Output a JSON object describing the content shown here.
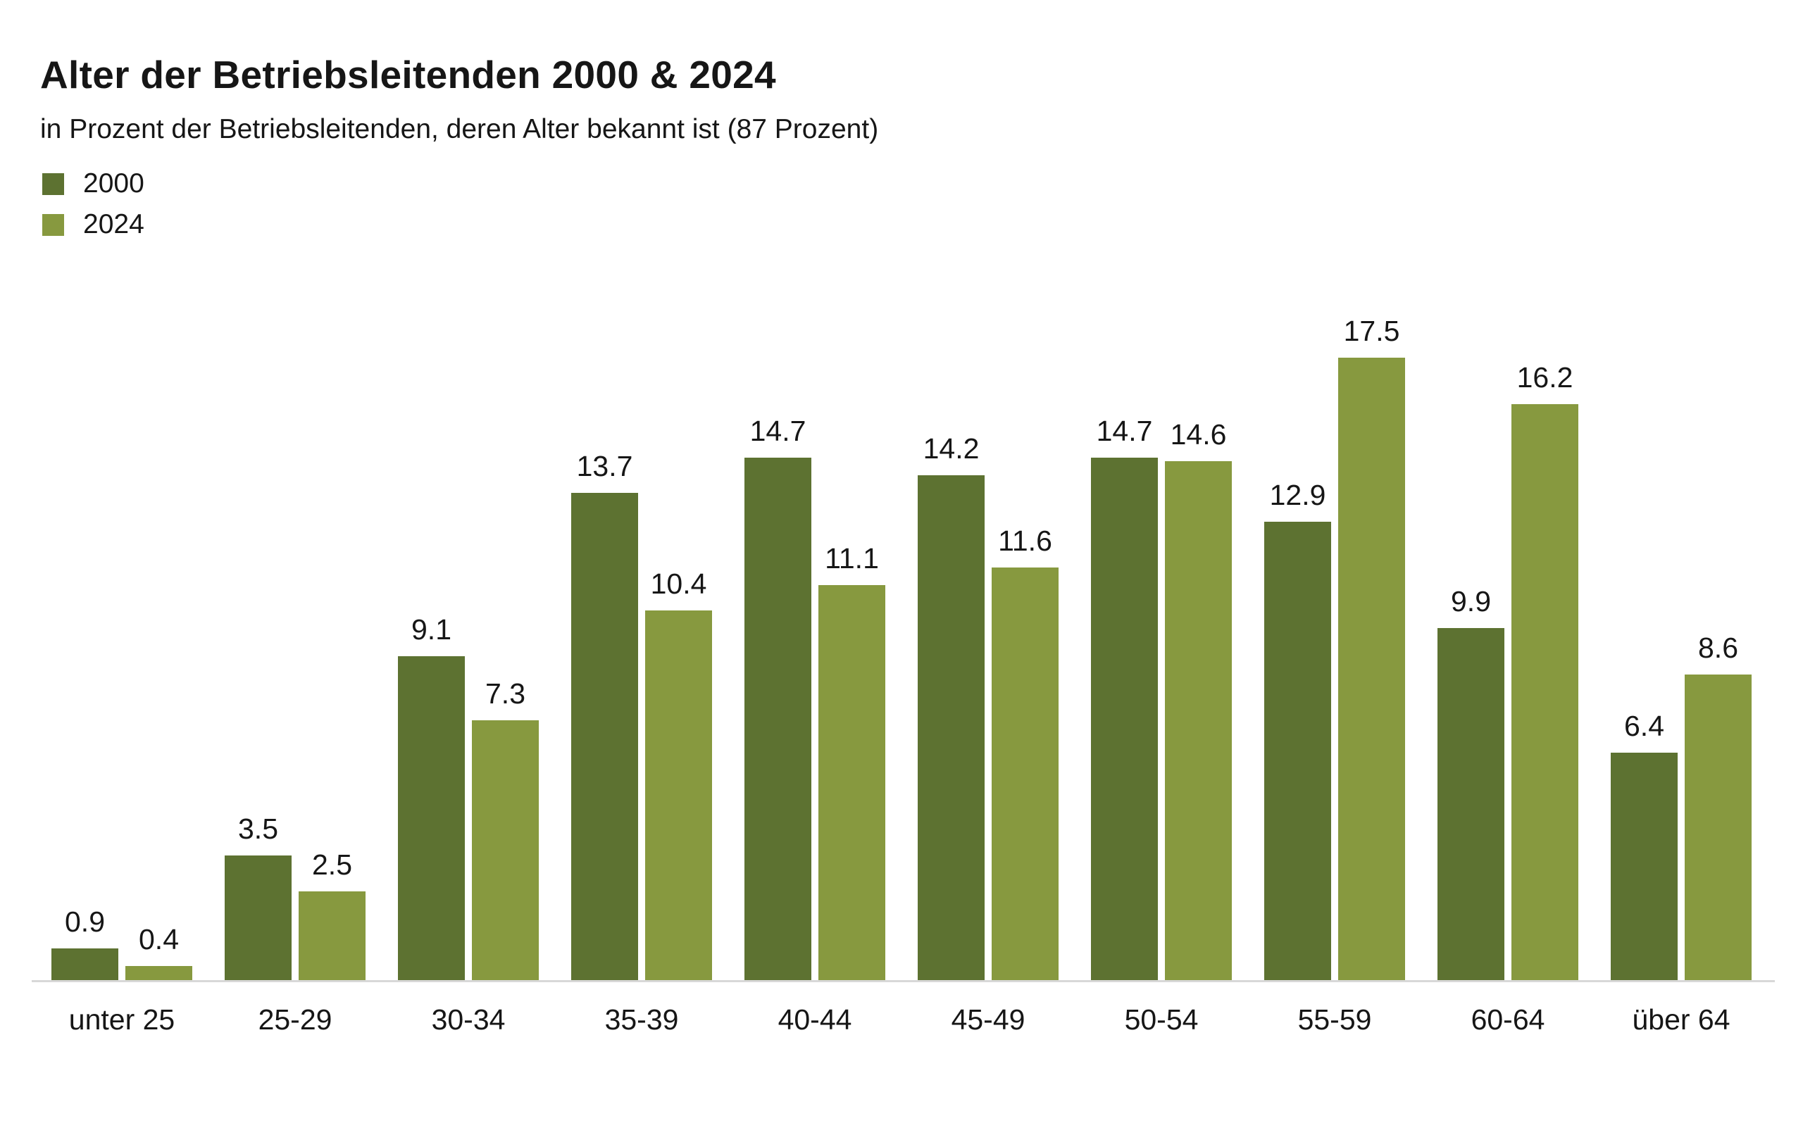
{
  "chart_data": {
    "type": "bar",
    "title": "Alter der Betriebsleitenden 2000 & 2024",
    "subtitle": "in Prozent der Betriebsleitenden, deren Alter bekannt ist (87 Prozent)",
    "categories": [
      "unter 25",
      "25-29",
      "30-34",
      "35-39",
      "40-44",
      "45-49",
      "50-54",
      "55-59",
      "60-64",
      "über 64"
    ],
    "series": [
      {
        "name": "2000",
        "color": "#5d7231",
        "values": [
          0.9,
          3.5,
          9.1,
          13.7,
          14.7,
          14.2,
          14.7,
          12.9,
          9.9,
          6.4
        ]
      },
      {
        "name": "2024",
        "color": "#87993f",
        "values": [
          0.4,
          2.5,
          7.3,
          10.4,
          11.1,
          11.6,
          14.6,
          17.5,
          16.2,
          8.6
        ]
      }
    ],
    "value_labels_shown": true,
    "legend_position": "top-left",
    "grid": false,
    "y_axis_shown": false,
    "ylim": [
      0,
      18.8
    ],
    "xlabel": "",
    "ylabel": "",
    "axis_line_color": "#d8d8d8",
    "background_color": "#ffffff",
    "text_color": "#161616"
  }
}
